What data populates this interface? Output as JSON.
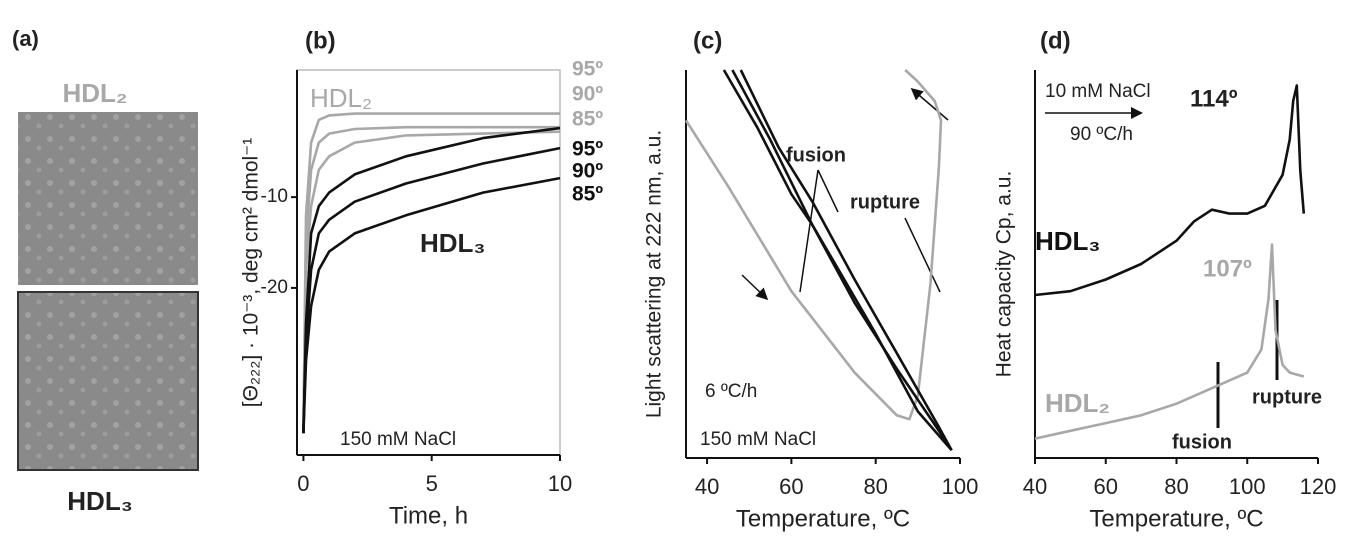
{
  "panel_a": {
    "label": "(a)",
    "top_label": "HDL₂",
    "bottom_label": "HDL₃"
  },
  "chart_data": [
    {
      "type": "line",
      "panel_label": "(b)",
      "x_label": "Time, h",
      "y_label": "[Θ₂₂₂] · 10⁻³, deg cm² dmol⁻¹",
      "xlim": [
        -0.25,
        10
      ],
      "xticks": [
        0,
        5,
        10
      ],
      "ylim": [
        -38.4,
        4
      ],
      "yticks": [
        -10,
        -20
      ],
      "annotations": [
        "HDL₂",
        "HDL₃",
        "150 mM NaCl"
      ],
      "series": [
        {
          "name": "95º",
          "color": "#a8a8a8",
          "x": [
            0,
            0.1,
            0.3,
            0.6,
            1,
            2,
            4,
            7,
            10
          ],
          "values": [
            -36,
            -12,
            -4,
            -1.5,
            -1,
            -0.8,
            -0.8,
            -0.8,
            -0.8
          ]
        },
        {
          "name": "90º",
          "color": "#a8a8a8",
          "x": [
            0,
            0.1,
            0.3,
            0.6,
            1,
            2,
            4,
            7,
            10
          ],
          "values": [
            -36,
            -15,
            -7,
            -4,
            -3,
            -2.5,
            -2.3,
            -2.3,
            -2.3
          ]
        },
        {
          "name": "85º",
          "color": "#a8a8a8",
          "x": [
            0,
            0.1,
            0.3,
            0.6,
            1,
            2,
            4,
            7,
            10
          ],
          "values": [
            -36,
            -18,
            -11,
            -7,
            -5.5,
            -4,
            -3.2,
            -3,
            -2.8
          ]
        },
        {
          "name": "95º",
          "color": "#111111",
          "x": [
            0,
            0.1,
            0.3,
            0.6,
            1,
            2,
            4,
            7,
            10
          ],
          "values": [
            -36,
            -24,
            -14,
            -11,
            -9.5,
            -7.5,
            -5.5,
            -3.5,
            -2.4
          ]
        },
        {
          "name": "90º",
          "color": "#111111",
          "x": [
            0,
            0.1,
            0.3,
            0.6,
            1,
            2,
            4,
            7,
            10
          ],
          "values": [
            -36,
            -26,
            -18,
            -14,
            -12.5,
            -10.5,
            -8.5,
            -6.3,
            -4.6
          ]
        },
        {
          "name": "85º",
          "color": "#111111",
          "x": [
            0,
            0.1,
            0.3,
            0.6,
            1,
            2,
            4,
            7,
            10
          ],
          "values": [
            -36,
            -28,
            -22,
            -18,
            -16,
            -14,
            -12,
            -9.5,
            -7.9
          ]
        }
      ]
    },
    {
      "type": "line",
      "panel_label": "(c)",
      "x_label": "Temperature, ºC",
      "y_label": "Light scattering at 222 nm, a.u.",
      "xlim": [
        35,
        100
      ],
      "xticks": [
        40,
        60,
        80,
        100
      ],
      "ylim": [
        0,
        10
      ],
      "annotations": [
        "fusion",
        "rupture",
        "6 ºC/h",
        "150 mM NaCl"
      ],
      "series": [
        {
          "color": "#a8a8a8",
          "x": [
            35,
            45,
            55,
            60,
            65,
            75,
            85,
            88,
            90,
            93,
            95,
            95.5,
            94,
            90,
            87
          ],
          "values": [
            8.7,
            7.0,
            5.2,
            4.3,
            3.6,
            2.2,
            1.1,
            1.0,
            1.6,
            4.5,
            7.5,
            8.7,
            9.2,
            9.7,
            10
          ]
        },
        {
          "color": "#111111",
          "x": [
            46,
            55,
            65,
            75,
            85,
            95,
            98
          ],
          "values": [
            10,
            8.2,
            6.0,
            4.0,
            2.3,
            0.7,
            0.2
          ]
        },
        {
          "color": "#111111",
          "x": [
            48,
            57,
            65,
            75,
            85,
            95,
            98
          ],
          "values": [
            10,
            8,
            6.6,
            4.6,
            2.7,
            0.8,
            0.2
          ]
        },
        {
          "color": "#111111",
          "x": [
            44,
            52,
            60,
            65,
            72,
            80,
            90,
            98
          ],
          "values": [
            10,
            8.5,
            6.8,
            6.0,
            4.7,
            3.2,
            1.2,
            0.2
          ]
        }
      ]
    },
    {
      "type": "line",
      "panel_label": "(d)",
      "x_label": "Temperature, ºC",
      "y_label": "Heat capacity Cp, a.u.",
      "xlim": [
        40,
        120
      ],
      "xticks": [
        40,
        60,
        80,
        100,
        120
      ],
      "ylim": [
        0,
        10
      ],
      "annotations": [
        "10 mM NaCl",
        "90 ºC/h",
        "114º",
        "107º",
        "rupture",
        "fusion"
      ],
      "series": [
        {
          "name": "HDL₃",
          "color": "#111111",
          "x": [
            40,
            50,
            60,
            70,
            80,
            85,
            90,
            95,
            100,
            105,
            110,
            112,
            113,
            114,
            115,
            116
          ],
          "values": [
            4.2,
            4.3,
            4.6,
            5.0,
            5.6,
            6.1,
            6.4,
            6.3,
            6.3,
            6.5,
            7.3,
            8.2,
            9.2,
            9.6,
            7.4,
            6.3
          ]
        },
        {
          "name": "HDL₂",
          "color": "#a8a8a8",
          "x": [
            40,
            50,
            60,
            70,
            80,
            90,
            100,
            104,
            106,
            107,
            108,
            110,
            112,
            116
          ],
          "values": [
            0.5,
            0.7,
            0.9,
            1.1,
            1.4,
            1.8,
            2.2,
            2.8,
            4.1,
            5.5,
            3.3,
            2.4,
            2.2,
            2.1
          ]
        }
      ]
    }
  ]
}
